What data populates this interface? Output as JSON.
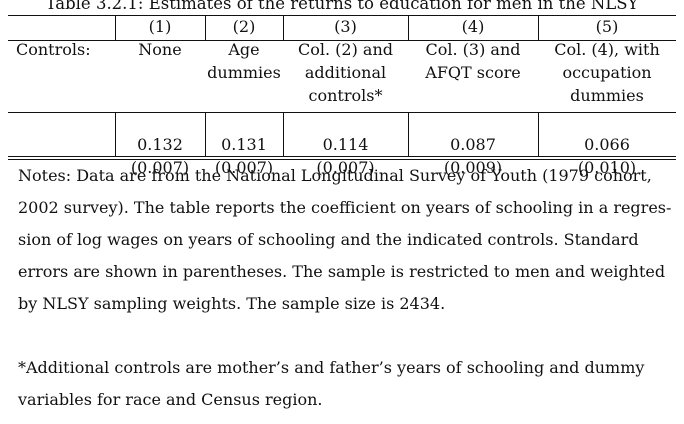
{
  "caption": "Table 3.2.1: Estimates of the returns to education for men in the NLSY",
  "columns": [
    {
      "number": "(1)",
      "controls": [
        "None"
      ],
      "coef": "0.132",
      "se": "(0.007)"
    },
    {
      "number": "(2)",
      "controls": [
        "Age",
        "dummies"
      ],
      "coef": "0.131",
      "se": "(0.007)"
    },
    {
      "number": "(3)",
      "controls": [
        "Col. (2) and",
        "additional",
        "controls*"
      ],
      "coef": "0.114",
      "se": "(0.007)"
    },
    {
      "number": "(4)",
      "controls": [
        "Col. (3) and",
        "AFQT score"
      ],
      "coef": "0.087",
      "se": "(0.009)"
    },
    {
      "number": "(5)",
      "controls": [
        "Col. (4), with",
        "occupation",
        "dummies"
      ],
      "coef": "0.066",
      "se": "(0.010)"
    }
  ],
  "row_label": "Controls:",
  "notes": {
    "lines": [
      "Notes: Data are from the National Longitudinal Survey of Youth (1979 cohort,",
      "2002 survey). The table reports the coefficient on years of schooling in a regres-",
      "sion of log wages on years of schooling and the indicated controls. Standard",
      "errors are shown in parentheses. The sample is restricted to men and weighted",
      "by NLSY sampling weights. The sample size is 2434."
    ],
    "footnote_lines": [
      "*Additional controls are mother’s and father’s years of schooling and dummy",
      "variables for race and Census region."
    ]
  }
}
